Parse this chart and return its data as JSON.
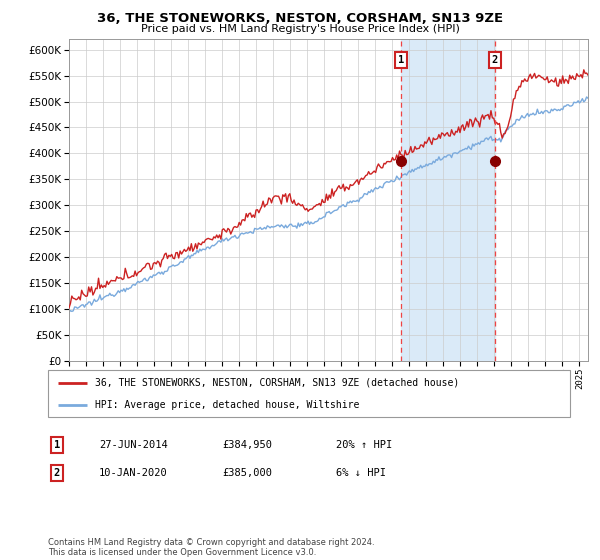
{
  "title": "36, THE STONEWORKS, NESTON, CORSHAM, SN13 9ZE",
  "subtitle": "Price paid vs. HM Land Registry's House Price Index (HPI)",
  "legend_line1": "36, THE STONEWORKS, NESTON, CORSHAM, SN13 9ZE (detached house)",
  "legend_line2": "HPI: Average price, detached house, Wiltshire",
  "annotation1_label": "1",
  "annotation1_date": "27-JUN-2014",
  "annotation1_price": "£384,950",
  "annotation1_hpi": "20% ↑ HPI",
  "annotation2_label": "2",
  "annotation2_date": "10-JAN-2020",
  "annotation2_price": "£385,000",
  "annotation2_hpi": "6% ↓ HPI",
  "footer": "Contains HM Land Registry data © Crown copyright and database right 2024.\nThis data is licensed under the Open Government Licence v3.0.",
  "hpi_color": "#7aaadd",
  "price_color": "#cc2222",
  "point_color": "#880000",
  "vline_color": "#ee4444",
  "shade_color": "#daeaf8",
  "ylim": [
    0,
    620000
  ],
  "yticks": [
    0,
    50000,
    100000,
    150000,
    200000,
    250000,
    300000,
    350000,
    400000,
    450000,
    500000,
    550000,
    600000
  ],
  "sale1_x": 2014.49,
  "sale1_y": 384950,
  "sale2_x": 2020.03,
  "sale2_y": 385000,
  "xlim_left": 1995,
  "xlim_right": 2025.5
}
